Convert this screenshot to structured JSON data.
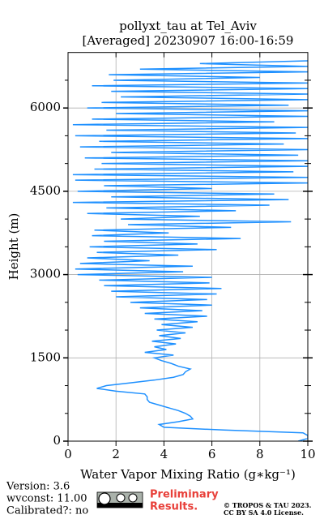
{
  "chart_data": {
    "type": "line",
    "title": "pollyxt_tau at Tel_Aviv",
    "subtitle": "[Averaged] 20230907 16:00-16:59",
    "x_label": "Water Vapor Mixing Ratio (g∗kg⁻¹)",
    "y_label": "Height (m)",
    "xlim": [
      0,
      10
    ],
    "xticks": [
      0,
      2,
      4,
      6,
      8,
      10
    ],
    "ylim": [
      0,
      7000
    ],
    "yticks": [
      0,
      1500,
      3000,
      4500,
      6000
    ],
    "yminorticks": [
      500,
      1000,
      2000,
      2500,
      3500,
      4000,
      5000,
      5500,
      6500
    ],
    "grid": true,
    "series": [
      {
        "color": "#1e90ff",
        "heights": [
          0,
          50,
          100,
          150,
          200,
          250,
          300,
          350,
          400,
          450,
          500,
          550,
          600,
          650,
          700,
          750,
          800,
          850,
          900,
          950,
          1000,
          1050,
          1100,
          1150,
          1200,
          1250,
          1300,
          1350,
          1400,
          1450,
          1500,
          1550,
          1600,
          1650,
          1700,
          1750,
          1800,
          1850,
          1900,
          1950,
          2000,
          2050,
          2100,
          2150,
          2200,
          2250,
          2300,
          2350,
          2400,
          2450,
          2500,
          2550,
          2600,
          2650,
          2700,
          2750,
          2800,
          2850,
          2900,
          2950,
          3000,
          3050,
          3100,
          3150,
          3200,
          3250,
          3300,
          3350,
          3400,
          3450,
          3500,
          3550,
          3600,
          3650,
          3700,
          3750,
          3800,
          3850,
          3900,
          3950,
          4000,
          4050,
          4100,
          4150,
          4200,
          4250,
          4300,
          4350,
          4400,
          4450,
          4500,
          4550,
          4600,
          4650,
          4700,
          4750,
          4800,
          4850,
          4900,
          4950,
          5000,
          5050,
          5100,
          5150,
          5200,
          5250,
          5300,
          5350,
          5400,
          5450,
          5500,
          5550,
          5600,
          5650,
          5700,
          5750,
          5800,
          5850,
          5900,
          5950,
          6000,
          6050,
          6100,
          6150,
          6200,
          6250,
          6300,
          6350,
          6400,
          6450,
          6500,
          6550,
          6600,
          6650,
          6700,
          6750,
          6800,
          6850
        ],
        "values": [
          9.6,
          10,
          10,
          9.8,
          6.5,
          4.0,
          3.8,
          4.6,
          5.2,
          5.1,
          4.9,
          4.6,
          4.2,
          3.8,
          3.4,
          3.3,
          3.3,
          3.2,
          2.0,
          1.2,
          1.6,
          2.6,
          3.6,
          4.4,
          4.8,
          4.9,
          5.1,
          4.6,
          4.3,
          3.9,
          3.6,
          4.4,
          3.2,
          4.1,
          3.6,
          4.5,
          3.5,
          4.7,
          3.8,
          4.9,
          3.7,
          5.2,
          3.9,
          5.4,
          3.6,
          5.8,
          3.2,
          5.6,
          3.0,
          6.0,
          2.6,
          5.8,
          2.0,
          6.2,
          1.8,
          6.4,
          1.5,
          5.9,
          1.3,
          6.0,
          0.4,
          4.8,
          0.3,
          5.2,
          0.5,
          3.4,
          0.8,
          4.6,
          1.2,
          6.2,
          0.9,
          5.4,
          1.5,
          7.2,
          1.0,
          4.2,
          1.1,
          6.8,
          2.5,
          9.3,
          2.2,
          5.5,
          0.8,
          7.0,
          1.6,
          8.4,
          0.2,
          9.2,
          1.8,
          8.6,
          0.4,
          6.0,
          1.5,
          10,
          0.3,
          10,
          0.2,
          9.4,
          1.1,
          10,
          1.4,
          10,
          0.7,
          9.6,
          1.8,
          10,
          0.5,
          9.0,
          1.3,
          10,
          0.3,
          9.5,
          1.6,
          10,
          0.2,
          8.6,
          1.0,
          10,
          2.0,
          10,
          0.8,
          9.2,
          1.4,
          10,
          2.2,
          10,
          1.8,
          10,
          1.0,
          10,
          1.9,
          8.0,
          1.7,
          10,
          3.0,
          10,
          5.5,
          10
        ]
      }
    ]
  },
  "footer": {
    "version": "Version: 3.6",
    "wvconst": "wvconst:  11.00",
    "calibrated": "Calibrated?: no",
    "preliminary": [
      "Preliminary",
      "Results."
    ],
    "copyright": [
      "© TROPOS & TAU 2023.",
      "CC BY SA 4.0 License."
    ]
  }
}
